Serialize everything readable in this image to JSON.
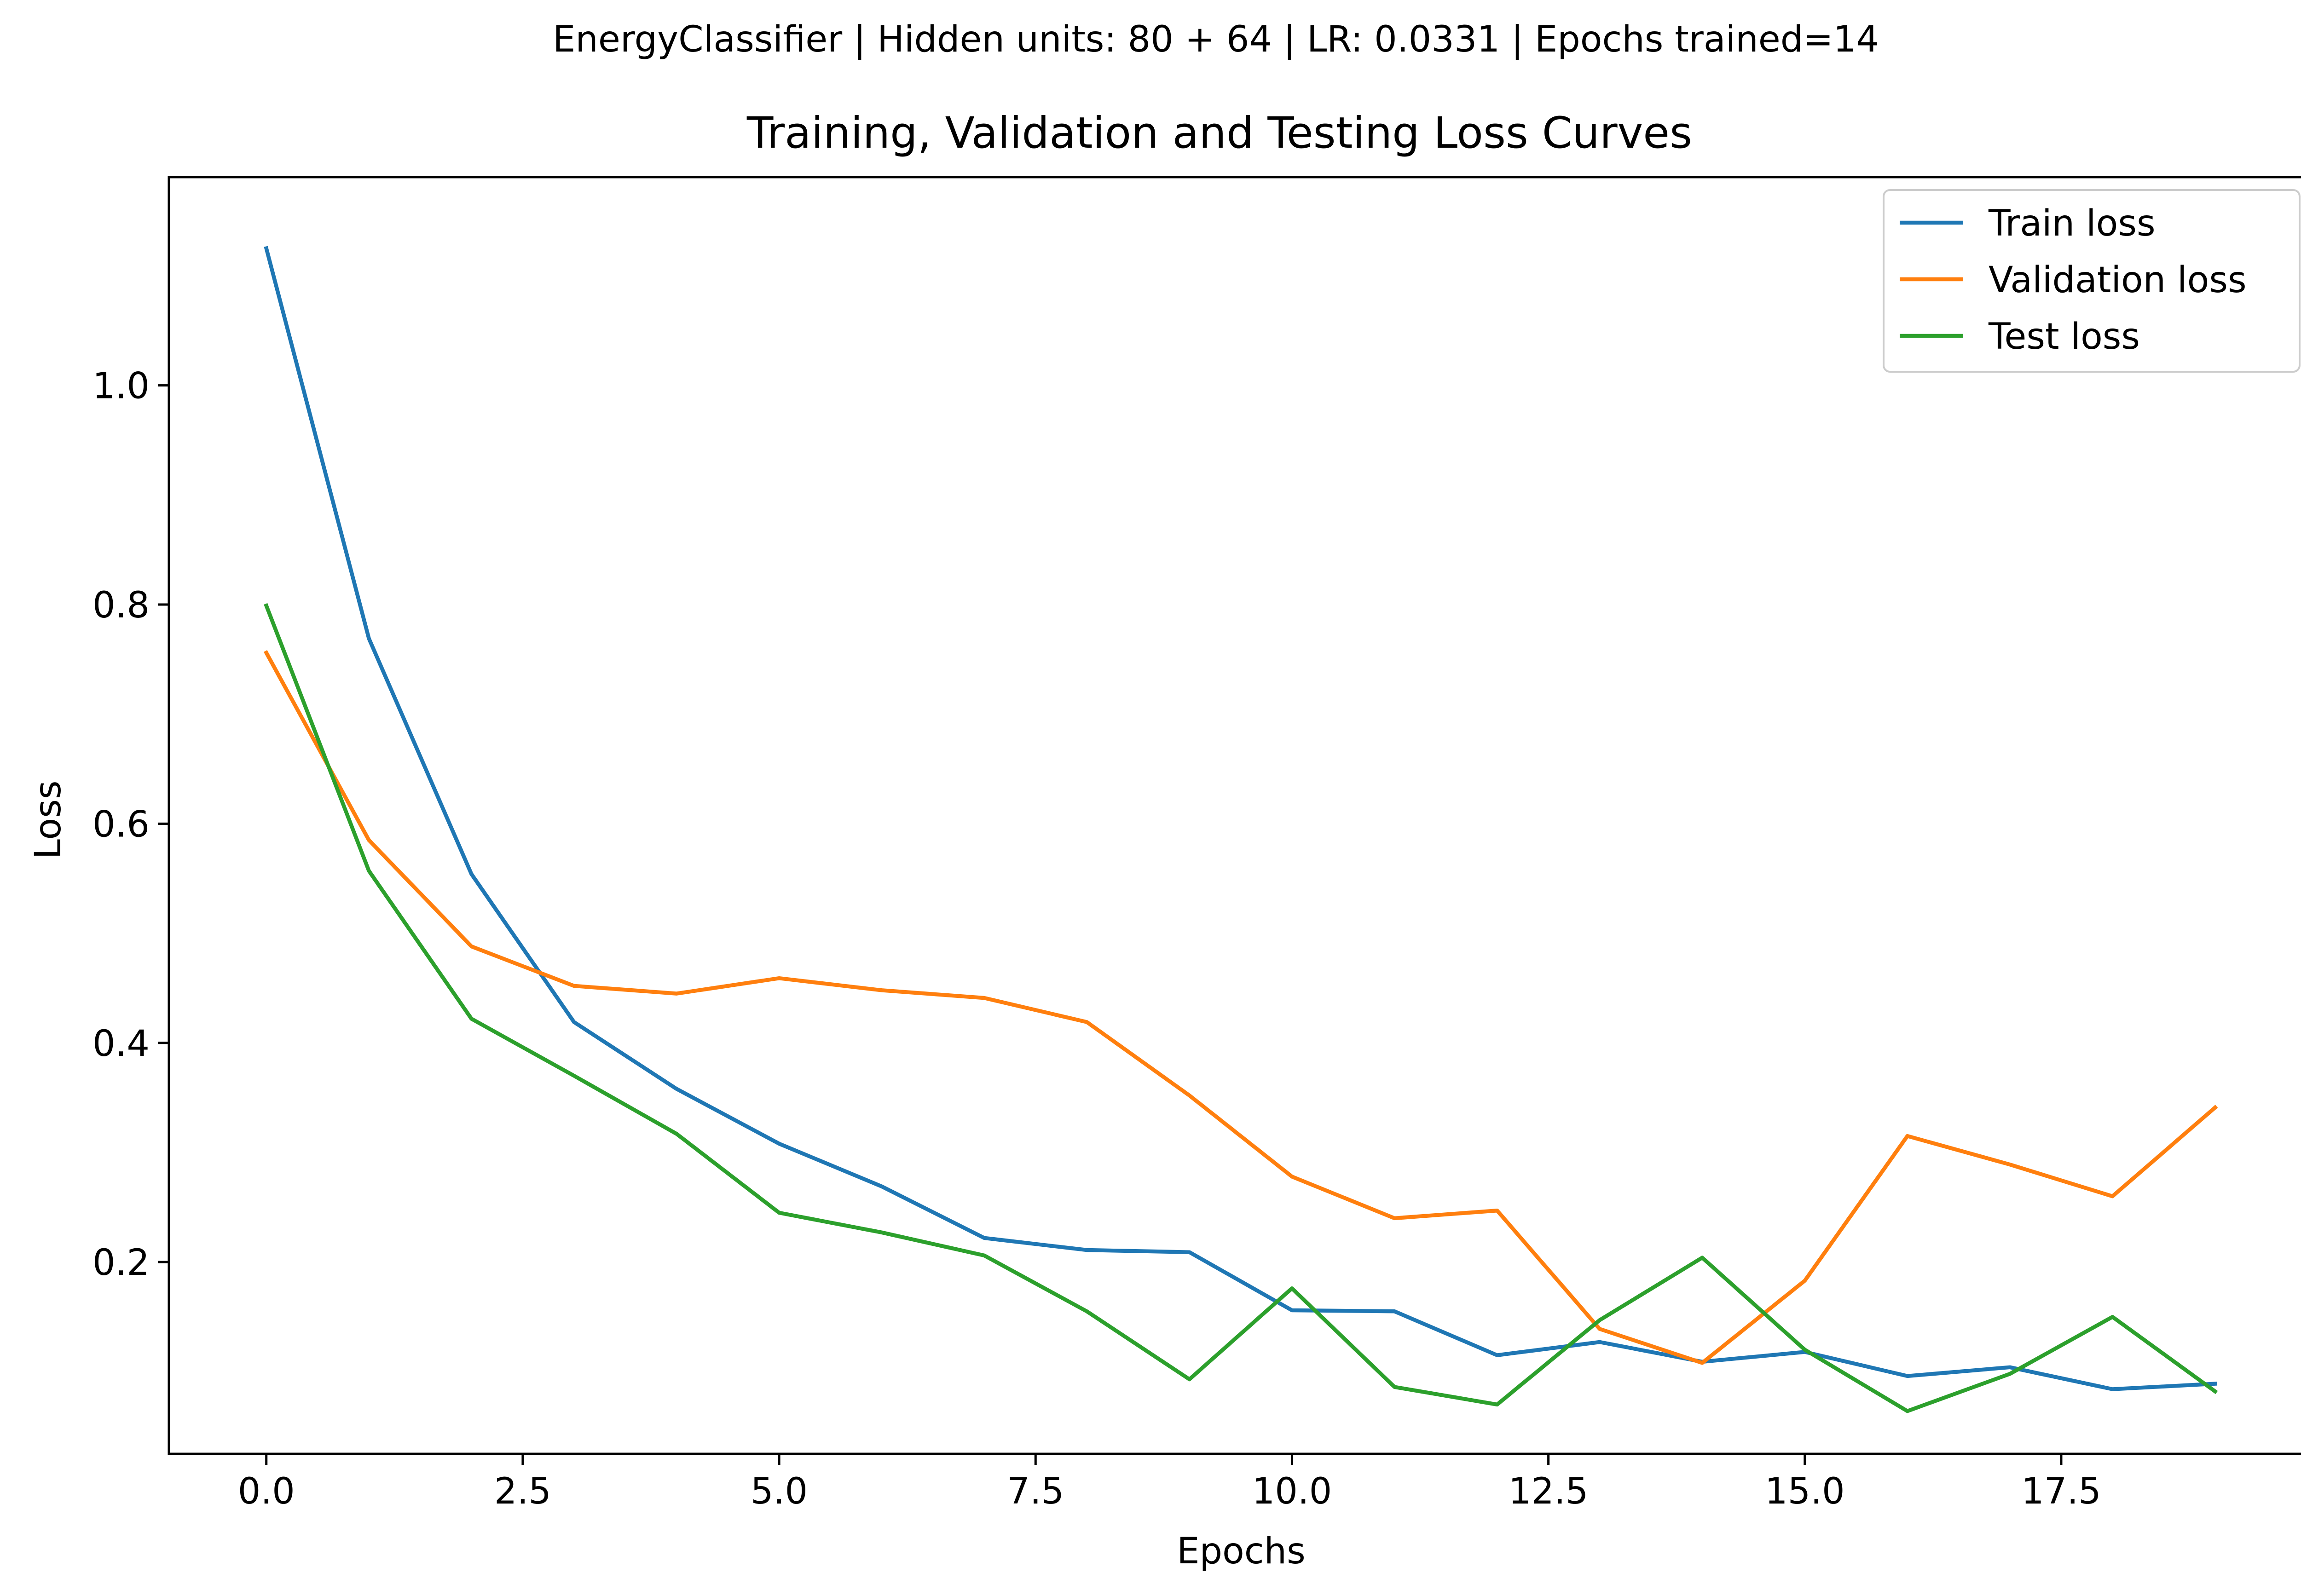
{
  "suptitle": "EnergyClassifier | Hidden units: 80 + 64 | LR: 0.0331 | Epochs trained=14",
  "chart_data": {
    "type": "line",
    "title": "Training, Validation and Testing Loss Curves",
    "xlabel": "Epochs",
    "ylabel": "Loss",
    "xlim": [
      -0.95,
      19.95
    ],
    "ylim": [
      0.025,
      1.19
    ],
    "xticks": [
      0,
      2.5,
      5,
      7.5,
      10,
      12.5,
      15,
      17.5
    ],
    "xtick_labels": [
      "0.0",
      "2.5",
      "5.0",
      "7.5",
      "10.0",
      "12.5",
      "15.0",
      "17.5"
    ],
    "yticks": [
      0.2,
      0.4,
      0.6,
      0.8,
      1.0
    ],
    "ytick_labels": [
      "0.2",
      "0.4",
      "0.6",
      "0.8",
      "1.0"
    ],
    "grid": false,
    "legend_position": "upper right",
    "x": [
      0,
      1,
      2,
      3,
      4,
      5,
      6,
      7,
      8,
      9,
      10,
      11,
      12,
      13,
      14,
      15,
      16,
      17,
      18,
      19
    ],
    "series": [
      {
        "name": "Train loss",
        "color": "#1f77b4",
        "values": [
          1.125,
          0.769,
          0.554,
          0.419,
          0.358,
          0.308,
          0.269,
          0.222,
          0.211,
          0.209,
          0.156,
          0.155,
          0.115,
          0.127,
          0.109,
          0.118,
          0.096,
          0.104,
          0.084,
          0.089
        ]
      },
      {
        "name": "Validation loss",
        "color": "#ff7f0e",
        "values": [
          0.756,
          0.585,
          0.488,
          0.452,
          0.445,
          0.459,
          0.448,
          0.441,
          0.419,
          0.352,
          0.278,
          0.24,
          0.247,
          0.139,
          0.108,
          0.183,
          0.315,
          0.289,
          0.26,
          0.341
        ]
      },
      {
        "name": "Test loss",
        "color": "#2ca02c",
        "values": [
          0.799,
          0.557,
          0.422,
          0.37,
          0.317,
          0.245,
          0.227,
          0.206,
          0.155,
          0.093,
          0.176,
          0.086,
          0.07,
          0.147,
          0.204,
          0.12,
          0.064,
          0.098,
          0.15,
          0.082
        ]
      }
    ]
  }
}
